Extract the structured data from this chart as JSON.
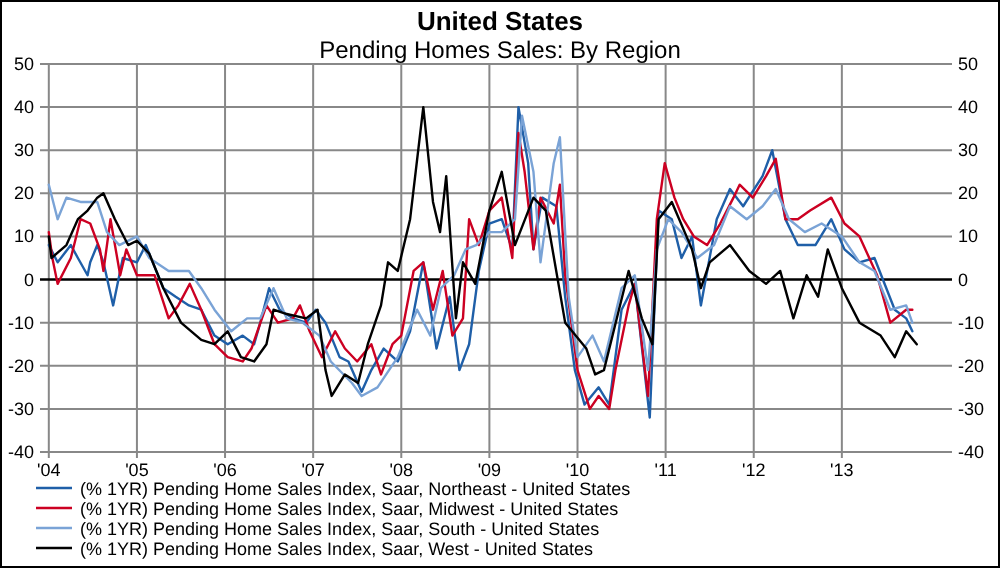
{
  "chart_data": {
    "type": "line",
    "title": "United States",
    "subtitle": "Pending Homes Sales: By Region",
    "xlim": [
      2003.9,
      2014.25
    ],
    "xticks": [
      {
        "value": 2004,
        "label": "'04"
      },
      {
        "value": 2005,
        "label": "'05"
      },
      {
        "value": 2006,
        "label": "'06"
      },
      {
        "value": 2007,
        "label": "'07"
      },
      {
        "value": 2008,
        "label": "'08"
      },
      {
        "value": 2009,
        "label": "'09"
      },
      {
        "value": 2010,
        "label": "'10"
      },
      {
        "value": 2011,
        "label": "'11"
      },
      {
        "value": 2012,
        "label": "'12"
      },
      {
        "value": 2013,
        "label": "'13"
      }
    ],
    "ylim": [
      -40,
      50
    ],
    "yticks": [
      -40,
      -30,
      -20,
      -10,
      0,
      10,
      20,
      30,
      40,
      50
    ],
    "y2lim": [
      -40,
      50
    ],
    "y2ticks": [
      -40,
      -30,
      -20,
      -10,
      0,
      10,
      20,
      30,
      40,
      50
    ],
    "grid": true,
    "legend": "bottom",
    "line_style": "solid",
    "marker": "none",
    "series": [
      {
        "name": "(% 1YR) Pending Home Sales Index, Saar, Northeast - United States",
        "color": "#1f5fa8",
        "x": [
          2004.0,
          2004.1,
          2004.25,
          2004.33,
          2004.44,
          2004.47,
          2004.55,
          2004.62,
          2004.73,
          2004.84,
          2005.0,
          2005.1,
          2005.3,
          2005.44,
          2005.59,
          2005.73,
          2005.88,
          2006.03,
          2006.2,
          2006.33,
          2006.4,
          2006.5,
          2006.62,
          2006.77,
          2006.92,
          2007.03,
          2007.14,
          2007.3,
          2007.4,
          2007.55,
          2007.66,
          2007.8,
          2007.96,
          2008.1,
          2008.25,
          2008.4,
          2008.55,
          2008.66,
          2008.77,
          2008.88,
          2009.0,
          2009.14,
          2009.26,
          2009.33,
          2009.44,
          2009.5,
          2009.6,
          2009.76,
          2009.86,
          2009.97,
          2010.08,
          2010.24,
          2010.36,
          2010.5,
          2010.65,
          2010.82,
          2010.92,
          2011.07,
          2011.18,
          2011.3,
          2011.4,
          2011.58,
          2011.73,
          2011.88,
          2012.1,
          2012.21,
          2012.36,
          2012.5,
          2012.7,
          2012.88,
          2013.03,
          2013.2,
          2013.37,
          2013.6,
          2013.73,
          2013.8
        ],
        "values": [
          8,
          4,
          8,
          5,
          1,
          4,
          8,
          4,
          -6,
          5,
          4,
          8,
          -2,
          -4,
          -6,
          -7,
          -13,
          -15,
          -13,
          -15,
          -10,
          -2,
          -7,
          -9,
          -10,
          -7,
          -10,
          -18,
          -19,
          -26,
          -21,
          -16,
          -19,
          -12,
          4,
          -16,
          -4,
          -21,
          -15,
          2,
          13,
          14,
          7,
          40,
          27,
          7,
          19,
          17,
          -4,
          -21,
          -29,
          -25,
          -29,
          -7,
          -1,
          -32,
          16,
          14,
          5,
          10,
          -6,
          14,
          21,
          17,
          24,
          30,
          14,
          8,
          8,
          14,
          7,
          4,
          5,
          -7,
          -9,
          -12
        ]
      },
      {
        "name": "(% 1YR) Pending Home Sales Index, Saar, Midwest - United States",
        "color": "#cc0022",
        "x": [
          2004.0,
          2004.04,
          2004.1,
          2004.25,
          2004.36,
          2004.47,
          2004.58,
          2004.62,
          2004.7,
          2004.81,
          2004.88,
          2005.0,
          2005.2,
          2005.36,
          2005.47,
          2005.6,
          2005.73,
          2005.88,
          2006.03,
          2006.2,
          2006.3,
          2006.47,
          2006.6,
          2006.77,
          2006.85,
          2006.96,
          2007.1,
          2007.25,
          2007.36,
          2007.5,
          2007.66,
          2007.77,
          2007.9,
          2008.0,
          2008.14,
          2008.25,
          2008.36,
          2008.47,
          2008.58,
          2008.7,
          2008.77,
          2008.88,
          2009.0,
          2009.14,
          2009.26,
          2009.33,
          2009.4,
          2009.5,
          2009.58,
          2009.73,
          2009.8,
          2009.86,
          2010.0,
          2010.14,
          2010.24,
          2010.36,
          2010.43,
          2010.58,
          2010.65,
          2010.8,
          2010.9,
          2010.99,
          2011.1,
          2011.2,
          2011.32,
          2011.47,
          2011.62,
          2011.77,
          2011.84,
          2011.99,
          2012.14,
          2012.25,
          2012.36,
          2012.5,
          2012.64,
          2012.88,
          2013.03,
          2013.2,
          2013.4,
          2013.55,
          2013.73,
          2013.8
        ],
        "values": [
          11,
          5,
          -1,
          5,
          14,
          13,
          7,
          2,
          14,
          1,
          7,
          1,
          1,
          -9,
          -6,
          -1,
          -7,
          -15,
          -18,
          -19,
          -16,
          -6,
          -10,
          -9,
          -6,
          -12,
          -18,
          -12,
          -16,
          -19,
          -15,
          -22,
          -15,
          -13,
          2,
          4,
          -7,
          2,
          -13,
          -9,
          14,
          8,
          16,
          19,
          5,
          34,
          25,
          7,
          19,
          13,
          22,
          1,
          -21,
          -30,
          -27,
          -30,
          -21,
          -6,
          -1,
          -27,
          14,
          27,
          19,
          14,
          10,
          8,
          13,
          19,
          22,
          19,
          24,
          28,
          14,
          14,
          16,
          19,
          13,
          10,
          1,
          -10,
          -7,
          -7
        ]
      },
      {
        "name": "(% 1YR) Pending Home Sales Index, Saar, South - United States",
        "color": "#7aa3d6",
        "x": [
          2004.0,
          2004.1,
          2004.2,
          2004.36,
          2004.55,
          2004.66,
          2004.8,
          2005.0,
          2005.14,
          2005.36,
          2005.59,
          2005.73,
          2005.88,
          2006.07,
          2006.25,
          2006.4,
          2006.55,
          2006.7,
          2006.88,
          2007.07,
          2007.2,
          2007.44,
          2007.55,
          2007.73,
          2007.96,
          2008.18,
          2008.33,
          2008.45,
          2008.6,
          2008.73,
          2008.85,
          2009.0,
          2009.14,
          2009.29,
          2009.37,
          2009.5,
          2009.58,
          2009.73,
          2009.8,
          2009.9,
          2010.0,
          2010.17,
          2010.3,
          2010.5,
          2010.65,
          2010.8,
          2010.9,
          2011.03,
          2011.18,
          2011.36,
          2011.55,
          2011.73,
          2011.92,
          2012.1,
          2012.25,
          2012.4,
          2012.58,
          2012.77,
          2013.0,
          2013.2,
          2013.37,
          2013.55,
          2013.73,
          2013.8
        ],
        "values": [
          22,
          14,
          19,
          18,
          18,
          11,
          8,
          10,
          5,
          2,
          2,
          -2,
          -7,
          -12,
          -9,
          -9,
          -2,
          -9,
          -10,
          -13,
          -19,
          -24,
          -27,
          -25,
          -18,
          -7,
          -13,
          -2,
          1,
          7,
          8,
          11,
          11,
          14,
          38,
          25,
          4,
          27,
          33,
          -4,
          -18,
          -13,
          -19,
          -2,
          1,
          -21,
          7,
          14,
          11,
          5,
          8,
          17,
          14,
          17,
          21,
          14,
          11,
          13,
          10,
          4,
          2,
          -7,
          -6,
          -10
        ]
      },
      {
        "name": "(% 1YR) Pending Home Sales Index, Saar, West - United States",
        "color": "#000000",
        "x": [
          2004.0,
          2004.03,
          2004.2,
          2004.33,
          2004.44,
          2004.55,
          2004.62,
          2004.75,
          2004.9,
          2005.0,
          2005.14,
          2005.3,
          2005.5,
          2005.73,
          2005.88,
          2006.03,
          2006.18,
          2006.33,
          2006.47,
          2006.55,
          2006.7,
          2006.92,
          2007.05,
          2007.14,
          2007.21,
          2007.36,
          2007.51,
          2007.62,
          2007.77,
          2007.85,
          2007.96,
          2008.1,
          2008.25,
          2008.36,
          2008.44,
          2008.51,
          2008.62,
          2008.7,
          2008.84,
          2009.0,
          2009.14,
          2009.29,
          2009.5,
          2009.64,
          2009.86,
          2010.1,
          2010.2,
          2010.3,
          2010.47,
          2010.58,
          2010.73,
          2010.85,
          2010.92,
          2011.07,
          2011.3,
          2011.4,
          2011.5,
          2011.73,
          2011.95,
          2012.14,
          2012.3,
          2012.45,
          2012.6,
          2012.73,
          2012.84,
          2013.0,
          2013.2,
          2013.44,
          2013.6,
          2013.73,
          2013.85
        ],
        "values": [
          10,
          5,
          8,
          14,
          16,
          19,
          20,
          14,
          8,
          9,
          6,
          -2,
          -10,
          -14,
          -15,
          -12,
          -18,
          -19,
          -15,
          -7,
          -8,
          -9,
          -7,
          -21,
          -27,
          -22,
          -24,
          -15,
          -6,
          4,
          2,
          14,
          40,
          18,
          11,
          24,
          -9,
          4,
          -1,
          16,
          25,
          8,
          19,
          16,
          -10,
          -16,
          -22,
          -21,
          -7,
          2,
          -9,
          -15,
          14,
          18,
          7,
          -2,
          4,
          8,
          2,
          -1,
          2,
          -9,
          1,
          -4,
          7,
          -2,
          -10,
          -13,
          -18,
          -12,
          -15
        ]
      }
    ]
  }
}
